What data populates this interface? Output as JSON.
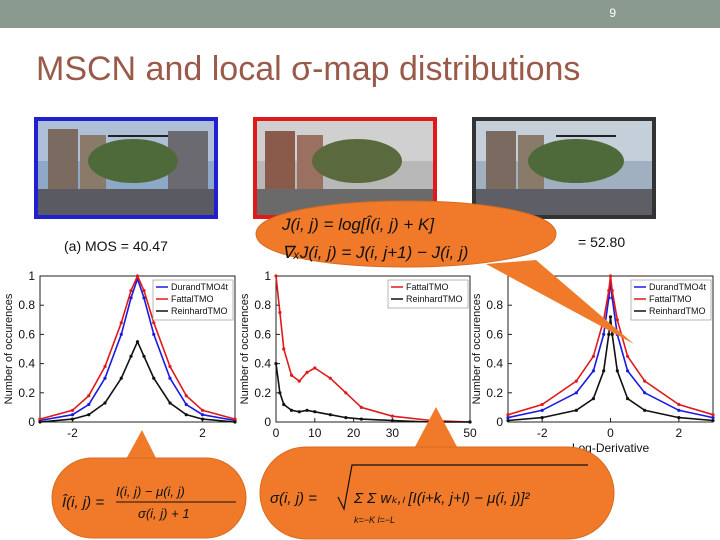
{
  "slide": {
    "page_number": "9",
    "title": "MSCN and local σ-map distributions",
    "mos_a": "(a) MOS = 40.47",
    "mos_c": "= 52.80"
  },
  "colors": {
    "durand": "#1a1ae0",
    "fattal": "#e01a1a",
    "reinhard": "#111111",
    "callout": "#f07a2a",
    "title": "#9a5a4a"
  },
  "formulas": {
    "log_line": "J(i, j) = log[Î(i, j) + K]",
    "deriv_line": "∇ₓJ(i, j) = J(i, j+1) − J(i, j)",
    "mscn_lhs": "Î(i, j) =",
    "mscn_num": "I(i, j) − μ(i, j)",
    "mscn_den": "σ(i, j) + 1",
    "sigma_lhs": "σ(i, j) =",
    "sigma_body": "Σ Σ wₖ,ₗ [I(i+k, j+l) − μ(i, j)]²",
    "sigma_limits": "k=−K  l=−L"
  },
  "chart_data": [
    {
      "type": "line",
      "ylabel": "Number of occurences",
      "xlim": [
        -3,
        3
      ],
      "ylim": [
        0,
        1
      ],
      "xticks": [
        "-2",
        "2"
      ],
      "yticks": [
        "0",
        "0.2",
        "0.4",
        "0.6",
        "0.8",
        "1"
      ],
      "legend": "top-right",
      "series": [
        {
          "name": "DurandTMO4t",
          "x": [
            -3,
            -2,
            -1.5,
            -1,
            -0.5,
            -0.2,
            0,
            0.2,
            0.5,
            1,
            1.5,
            2,
            3
          ],
          "values": [
            0.01,
            0.05,
            0.12,
            0.3,
            0.6,
            0.85,
            0.98,
            0.85,
            0.6,
            0.3,
            0.12,
            0.05,
            0.01
          ]
        },
        {
          "name": "FattalTMO",
          "x": [
            -3,
            -2,
            -1.5,
            -1,
            -0.5,
            -0.2,
            0,
            0.2,
            0.5,
            1,
            1.5,
            2,
            3
          ],
          "values": [
            0.02,
            0.08,
            0.18,
            0.38,
            0.68,
            0.9,
            1.0,
            0.9,
            0.68,
            0.38,
            0.18,
            0.08,
            0.02
          ]
        },
        {
          "name": "ReinhardTMO",
          "x": [
            -3,
            -2,
            -1.5,
            -1,
            -0.5,
            -0.2,
            0,
            0.2,
            0.5,
            1,
            1.5,
            2,
            3
          ],
          "values": [
            0.0,
            0.02,
            0.05,
            0.13,
            0.3,
            0.45,
            0.55,
            0.45,
            0.3,
            0.13,
            0.05,
            0.02,
            0.0
          ]
        }
      ]
    },
    {
      "type": "line",
      "ylabel": "Number of occurences",
      "xlim": [
        0,
        50
      ],
      "ylim": [
        0,
        1
      ],
      "xticks": [
        "0",
        "10",
        "20",
        "30",
        "50"
      ],
      "yticks": [
        "0",
        "0.2",
        "0.4",
        "0.6",
        "0.8",
        "1"
      ],
      "legend": "top-right",
      "series": [
        {
          "name": "FattalTMO",
          "x": [
            0,
            1,
            2,
            4,
            6,
            8,
            10,
            14,
            18,
            22,
            30,
            40,
            50
          ],
          "values": [
            1.0,
            0.75,
            0.5,
            0.32,
            0.28,
            0.34,
            0.37,
            0.3,
            0.2,
            0.1,
            0.04,
            0.01,
            0.0
          ]
        },
        {
          "name": "ReinhardTMO",
          "x": [
            0,
            1,
            2,
            4,
            6,
            8,
            10,
            14,
            18,
            22,
            30,
            40,
            50
          ],
          "values": [
            0.4,
            0.2,
            0.12,
            0.08,
            0.07,
            0.08,
            0.07,
            0.05,
            0.03,
            0.02,
            0.01,
            0.0,
            0.0
          ]
        }
      ]
    },
    {
      "type": "line",
      "xlabel": "Log-Derivative",
      "ylabel": "Number of occurences",
      "xlim": [
        -3,
        3
      ],
      "ylim": [
        0,
        1
      ],
      "xticks": [
        "-2",
        "0",
        "2"
      ],
      "yticks": [
        "0",
        "0.2",
        "0.4",
        "0.6",
        "0.8"
      ],
      "legend": "top-right",
      "series": [
        {
          "name": "DurandTMO4t",
          "x": [
            -3,
            -2,
            -1,
            -0.5,
            -0.2,
            -0.05,
            0,
            0.05,
            0.2,
            0.5,
            1,
            2,
            3
          ],
          "values": [
            0.03,
            0.08,
            0.2,
            0.35,
            0.6,
            0.85,
            0.95,
            0.85,
            0.6,
            0.35,
            0.2,
            0.08,
            0.03
          ]
        },
        {
          "name": "FattalTMO",
          "x": [
            -3,
            -2,
            -1,
            -0.5,
            -0.2,
            -0.05,
            0,
            0.05,
            0.2,
            0.5,
            1,
            2,
            3
          ],
          "values": [
            0.05,
            0.12,
            0.28,
            0.45,
            0.7,
            0.9,
            1.0,
            0.9,
            0.7,
            0.45,
            0.28,
            0.12,
            0.05
          ]
        },
        {
          "name": "ReinhardTMO",
          "x": [
            -3,
            -2,
            -1,
            -0.5,
            -0.2,
            -0.05,
            0,
            0.05,
            0.2,
            0.5,
            1,
            2,
            3
          ],
          "values": [
            0.01,
            0.03,
            0.08,
            0.16,
            0.35,
            0.6,
            0.72,
            0.6,
            0.35,
            0.16,
            0.08,
            0.03,
            0.01
          ]
        }
      ]
    }
  ]
}
